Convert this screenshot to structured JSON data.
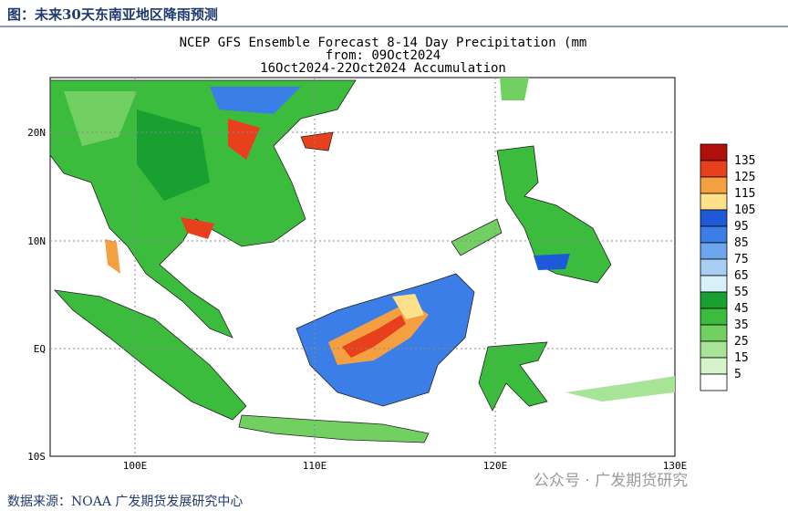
{
  "header": {
    "title": "图：未来30天东南亚地区降雨预测"
  },
  "map": {
    "title_lines": [
      "NCEP GFS Ensemble Forecast 8-14 Day Precipitation (mm",
      "from: 09Oct2024",
      "16Oct2024-22Oct2024 Accumulation"
    ],
    "lat_labels": [
      "20N",
      "10N",
      "EQ",
      "10S"
    ],
    "lon_labels": [
      "100E",
      "110E",
      "120E",
      "130E"
    ],
    "legend": {
      "levels": [
        135,
        125,
        115,
        105,
        95,
        85,
        75,
        65,
        55,
        45,
        35,
        25,
        15,
        5
      ],
      "colors": [
        "#b0100c",
        "#e8401c",
        "#f4a040",
        "#fce08a",
        "#1e5ad8",
        "#3c7ee8",
        "#6ea6ee",
        "#a8cef4",
        "#d8f0fa",
        "#18a030",
        "#3cbc3c",
        "#72d062",
        "#a8e498",
        "#d6f4cc",
        "#ffffff"
      ]
    }
  },
  "footer": {
    "source": "数据来源：NOAA 广发期货发展研究中心",
    "watermark": "公众号 · 广发期货研究"
  }
}
